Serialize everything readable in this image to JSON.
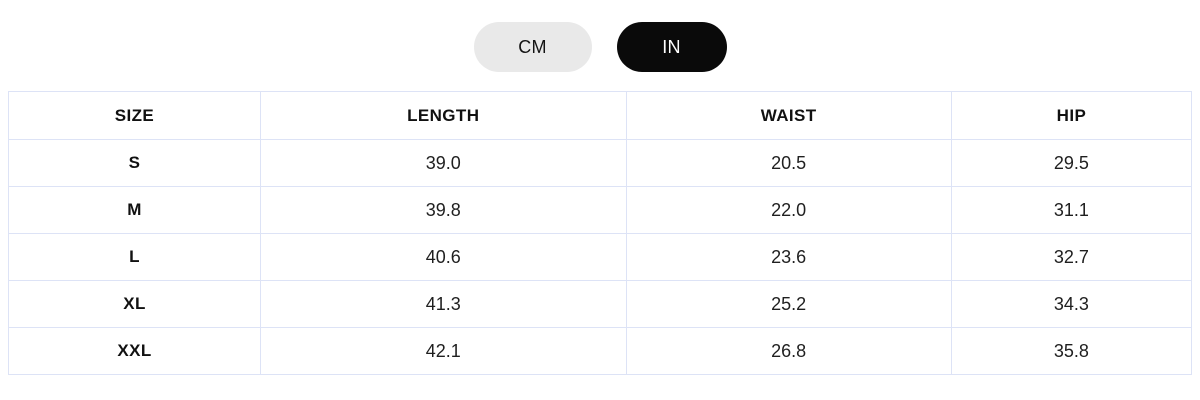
{
  "unit_toggle": {
    "cm_label": "CM",
    "in_label": "IN",
    "selected": "IN"
  },
  "colors": {
    "inactive_pill_bg": "#e9e9e9",
    "inactive_pill_text": "#141414",
    "active_pill_bg": "#0a0a0a",
    "active_pill_text": "#ffffff",
    "table_border": "#dde3f6",
    "header_text": "#111111",
    "value_text": "#1f1f1f",
    "page_bg": "#ffffff"
  },
  "table": {
    "columns": [
      "SIZE",
      "LENGTH",
      "WAIST",
      "HIP"
    ],
    "rows": [
      {
        "size": "S",
        "length": "39.0",
        "waist": "20.5",
        "hip": "29.5"
      },
      {
        "size": "M",
        "length": "39.8",
        "waist": "22.0",
        "hip": "31.1"
      },
      {
        "size": "L",
        "length": "40.6",
        "waist": "23.6",
        "hip": "32.7"
      },
      {
        "size": "XL",
        "length": "41.3",
        "waist": "25.2",
        "hip": "34.3"
      },
      {
        "size": "XXL",
        "length": "42.1",
        "waist": "26.8",
        "hip": "35.8"
      }
    ]
  }
}
